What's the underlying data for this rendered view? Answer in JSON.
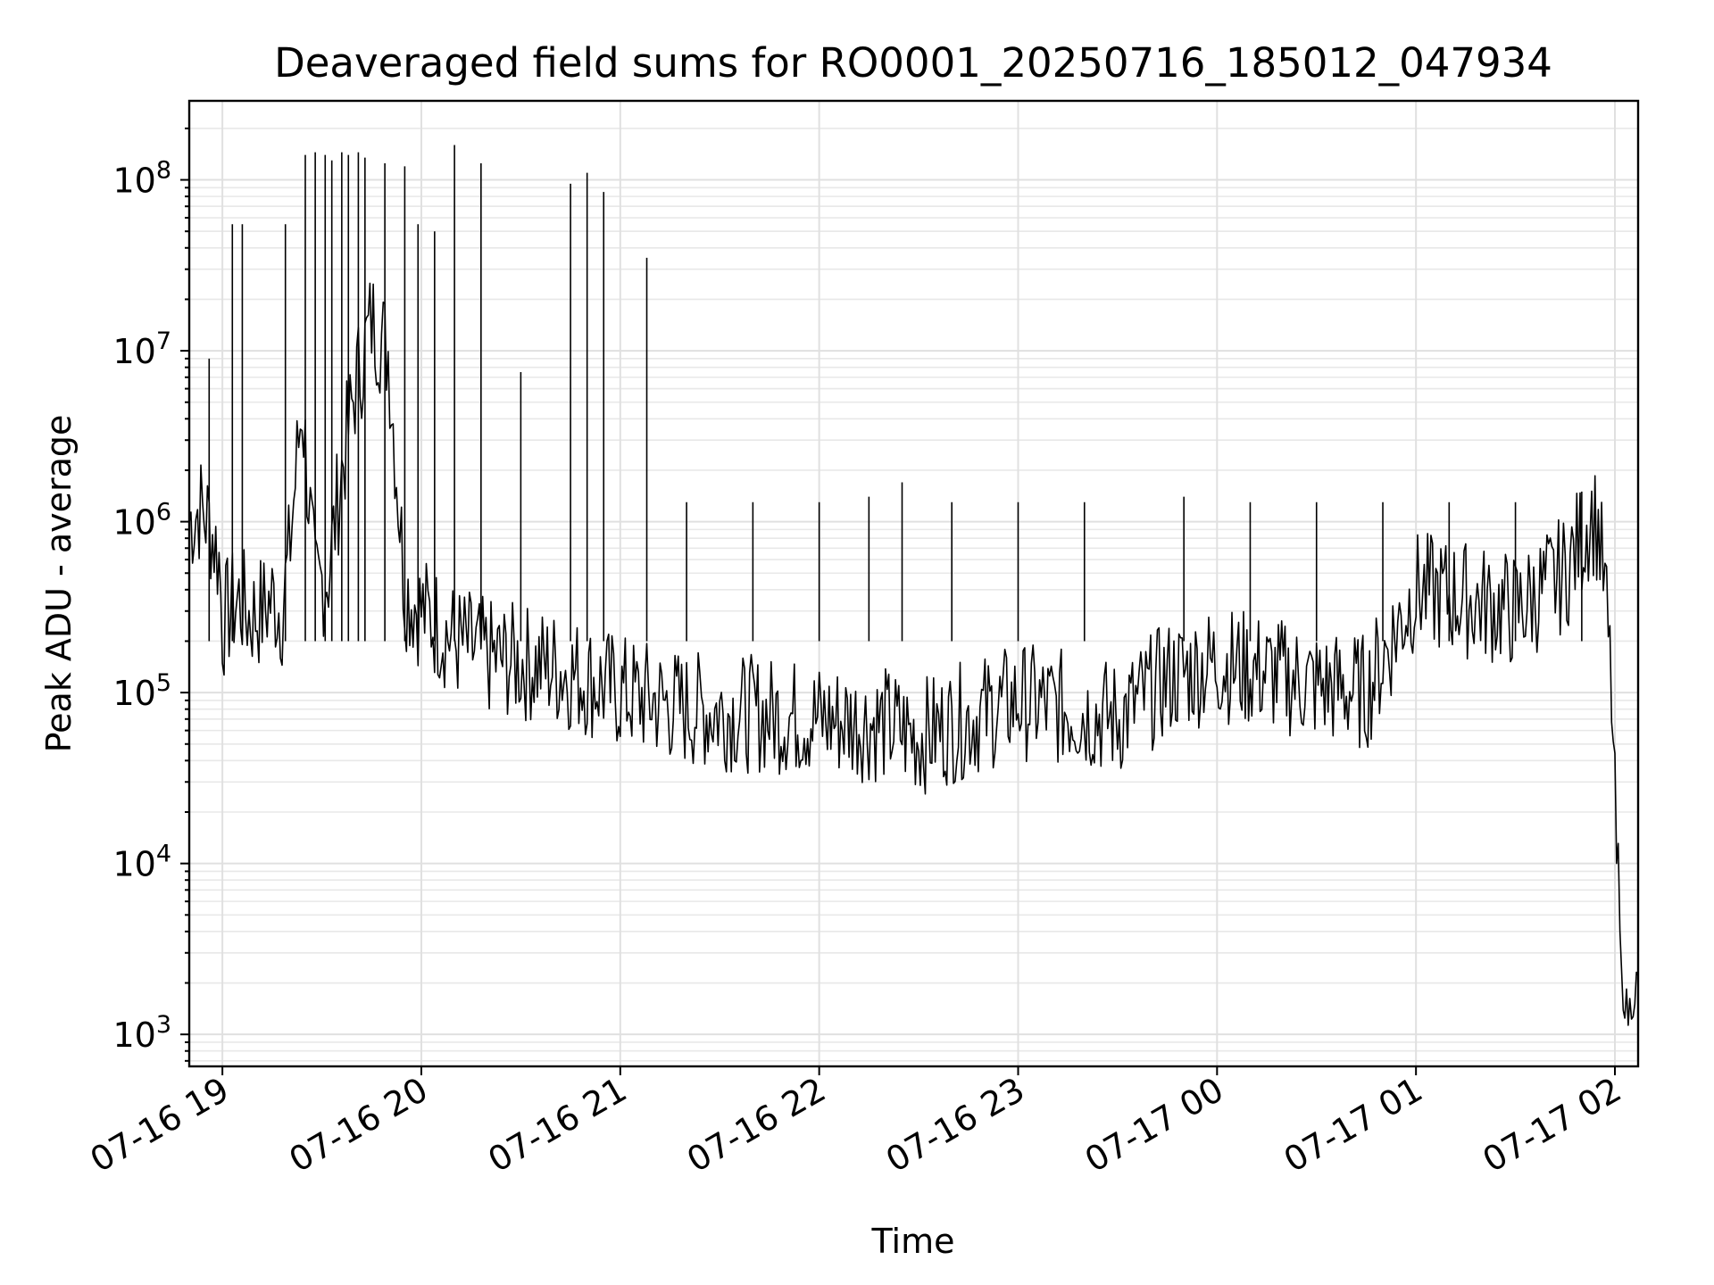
{
  "chart_data": {
    "type": "line",
    "title": "Deaveraged field sums for RO0001_20250716_185012_047934",
    "xlabel": "Time",
    "ylabel": "Peak ADU - average",
    "yscale": "log",
    "ylim": [
      650,
      290000000
    ],
    "xlim": [
      "2025-07-16 18:50",
      "2025-07-17 02:07"
    ],
    "grid": "both (major and minor, light gray)",
    "line_color": "#000000",
    "x_ticks": [
      "2025-07-16 19:00",
      "2025-07-16 20:00",
      "2025-07-16 21:00",
      "2025-07-16 22:00",
      "2025-07-16 23:00",
      "2025-07-17 00:00",
      "2025-07-17 01:00",
      "2025-07-17 02:00"
    ],
    "x_tick_labels": [
      "07-16 19",
      "07-16 20",
      "07-16 21",
      "07-16 22",
      "07-16 23",
      "07-17 00",
      "07-17 01",
      "07-17 02"
    ],
    "y_ticks": [
      1000,
      10000,
      100000,
      1000000,
      10000000,
      100000000
    ],
    "y_tick_labels": [
      {
        "base": "10",
        "exp": "3"
      },
      {
        "base": "10",
        "exp": "4"
      },
      {
        "base": "10",
        "exp": "5"
      },
      {
        "base": "10",
        "exp": "6"
      },
      {
        "base": "10",
        "exp": "7"
      },
      {
        "base": "10",
        "exp": "8"
      }
    ],
    "series": [
      {
        "x": [
          "2025-07-16 18:50",
          "2025-07-16 18:53",
          "2025-07-16 18:56",
          "2025-07-16 18:59",
          "2025-07-16 19:00",
          "2025-07-16 19:02",
          "2025-07-16 19:05",
          "2025-07-16 19:08",
          "2025-07-16 19:12",
          "2025-07-16 19:15",
          "2025-07-16 19:18",
          "2025-07-16 19:20",
          "2025-07-16 19:24",
          "2025-07-16 19:28",
          "2025-07-16 19:32",
          "2025-07-16 19:36",
          "2025-07-16 19:40",
          "2025-07-16 19:45",
          "2025-07-16 19:50",
          "2025-07-16 19:55",
          "2025-07-16 20:00",
          "2025-07-16 20:05",
          "2025-07-16 20:10",
          "2025-07-16 20:15",
          "2025-07-16 20:20",
          "2025-07-16 20:30",
          "2025-07-16 20:40",
          "2025-07-16 20:50",
          "2025-07-16 21:00",
          "2025-07-16 21:10",
          "2025-07-16 21:20",
          "2025-07-16 21:40",
          "2025-07-16 22:00",
          "2025-07-16 22:20",
          "2025-07-16 22:30",
          "2025-07-16 22:45",
          "2025-07-16 23:00",
          "2025-07-16 23:15",
          "2025-07-16 23:30",
          "2025-07-16 23:45",
          "2025-07-17 00:00",
          "2025-07-17 00:15",
          "2025-07-17 00:30",
          "2025-07-17 00:45",
          "2025-07-17 01:00",
          "2025-07-17 01:15",
          "2025-07-17 01:30",
          "2025-07-17 01:45",
          "2025-07-17 01:50",
          "2025-07-17 01:53",
          "2025-07-17 01:55",
          "2025-07-17 01:57",
          "2025-07-17 01:59",
          "2025-07-17 02:00",
          "2025-07-17 02:02",
          "2025-07-17 02:04",
          "2025-07-17 02:06",
          "2025-07-17 02:07"
        ],
        "y": [
          1000000,
          1200000,
          1000000,
          600000,
          250000,
          300000,
          350000,
          280000,
          300000,
          350000,
          300000,
          600000,
          5000000,
          400000,
          500000,
          2000000,
          6000000,
          15000000,
          10000000,
          400000,
          300000,
          250000,
          200000,
          180000,
          160000,
          150000,
          140000,
          120000,
          100000,
          90000,
          80000,
          75000,
          70000,
          65000,
          55000,
          70000,
          90000,
          80000,
          70000,
          120000,
          150000,
          130000,
          110000,
          100000,
          400000,
          350000,
          300000,
          500000,
          800000,
          1100000,
          900000,
          400000,
          100000,
          20000,
          2000,
          1300,
          1800,
          2200
        ]
      }
    ],
    "spikes": {
      "x": [
        "2025-07-16 18:56",
        "2025-07-16 19:03",
        "2025-07-16 19:06",
        "2025-07-16 19:19",
        "2025-07-16 19:25",
        "2025-07-16 19:28",
        "2025-07-16 19:31",
        "2025-07-16 19:33",
        "2025-07-16 19:36",
        "2025-07-16 19:38",
        "2025-07-16 19:41",
        "2025-07-16 19:43",
        "2025-07-16 19:49",
        "2025-07-16 19:55",
        "2025-07-16 19:59",
        "2025-07-16 20:04",
        "2025-07-16 20:10",
        "2025-07-16 20:18",
        "2025-07-16 20:30",
        "2025-07-16 20:45",
        "2025-07-16 20:50",
        "2025-07-16 20:55",
        "2025-07-16 21:08",
        "2025-07-16 21:20",
        "2025-07-16 21:40",
        "2025-07-16 22:00",
        "2025-07-16 22:15",
        "2025-07-16 22:25",
        "2025-07-16 22:40",
        "2025-07-16 23:00",
        "2025-07-16 23:20",
        "2025-07-16 23:50",
        "2025-07-17 00:10",
        "2025-07-17 00:30",
        "2025-07-17 00:50",
        "2025-07-17 01:10",
        "2025-07-17 01:30",
        "2025-07-17 01:50"
      ],
      "y": [
        9000000,
        55000000,
        55000000,
        55000000,
        140000000,
        145000000,
        140000000,
        130000000,
        145000000,
        140000000,
        145000000,
        135000000,
        125000000,
        120000000,
        55000000,
        50000000,
        160000000,
        125000000,
        7500000,
        95000000,
        110000000,
        85000000,
        35000000,
        1300000,
        1300000,
        1300000,
        1400000,
        1700000,
        1300000,
        1300000,
        1300000,
        1400000,
        1300000,
        1300000,
        1300000,
        1300000,
        1300000,
        1500000
      ]
    }
  }
}
